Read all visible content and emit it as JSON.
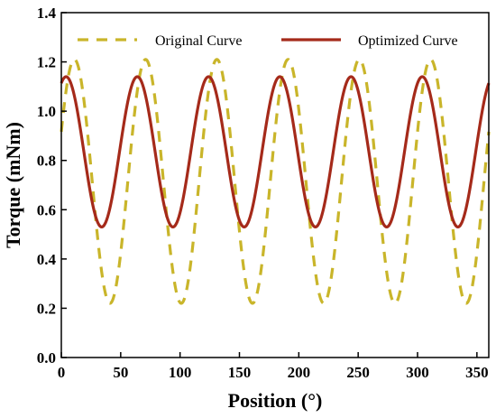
{
  "chart_data": {
    "type": "line",
    "title": "",
    "xlabel": "Position (°)",
    "ylabel": "Torque (mNm)",
    "xlim": [
      0,
      360
    ],
    "ylim": [
      0.0,
      1.4
    ],
    "xticks": [
      0,
      50,
      100,
      150,
      200,
      250,
      300,
      350
    ],
    "yticks": [
      0.0,
      0.2,
      0.4,
      0.6,
      0.8,
      1.0,
      1.2,
      1.4
    ],
    "xtick_labels": [
      "0",
      "50",
      "100",
      "150",
      "200",
      "250",
      "300",
      "350"
    ],
    "ytick_labels": [
      "0.0",
      "0.2",
      "0.4",
      "0.6",
      "0.8",
      "1.0",
      "1.2",
      "1.4"
    ],
    "grid": false,
    "legend_position": "top",
    "series": [
      {
        "name": "Original Curve",
        "style": "dashed",
        "color": "#c9b52a",
        "period_deg": 60,
        "max": 1.21,
        "min": 0.22,
        "peak_at": 11,
        "x": [
          0,
          11,
          41,
          71,
          101,
          131,
          161,
          191,
          221,
          251,
          281,
          311,
          341,
          360
        ],
        "y": [
          1.07,
          1.21,
          0.22,
          1.21,
          0.22,
          1.21,
          0.22,
          1.21,
          0.22,
          1.21,
          0.22,
          1.21,
          0.22,
          0.75
        ]
      },
      {
        "name": "Optimized Curve",
        "style": "solid",
        "color": "#a52a1a",
        "period_deg": 60,
        "max": 1.14,
        "min": 0.53,
        "peak_at": 4,
        "x": [
          0,
          4,
          34,
          64,
          94,
          124,
          154,
          184,
          214,
          244,
          274,
          304,
          334,
          360
        ],
        "y": [
          1.13,
          1.14,
          0.53,
          1.14,
          0.53,
          1.14,
          0.53,
          1.14,
          0.53,
          1.14,
          0.53,
          1.14,
          0.53,
          1.08
        ]
      }
    ]
  }
}
